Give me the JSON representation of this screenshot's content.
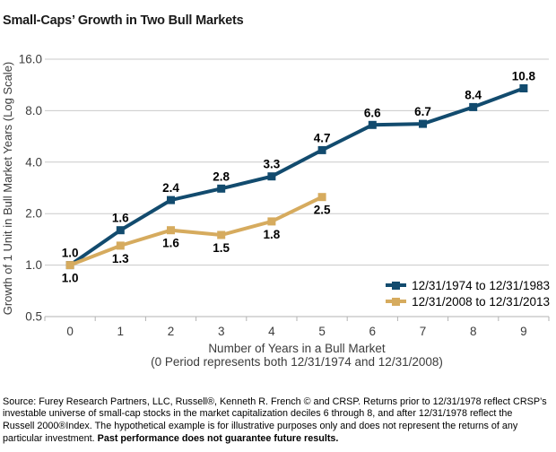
{
  "title": "Small-Caps’ Growth in Two Bull Markets",
  "chart_data": {
    "type": "line",
    "title": "Small-Caps’ Growth in Two Bull Markets",
    "x": [
      "0",
      "1",
      "2",
      "3",
      "4",
      "5",
      "6",
      "7",
      "8",
      "9"
    ],
    "xlabel": "Number of Years in a Bull Market",
    "xlabel_note": "(0 Period represents both 12/31/1974 and 12/31/2008)",
    "ylabel": "Growth of 1 Unit in Bull Market Years (Log Scale)",
    "yscale": "log",
    "ylim": [
      0.5,
      16
    ],
    "yticks": [
      16,
      8,
      4,
      2,
      1,
      0.5
    ],
    "ytick_labels": [
      "16.0",
      "8.0",
      "4.0",
      "2.0",
      "1.0",
      "0.5"
    ],
    "grid": "horizontal-only",
    "grid_color": "#c9c9c9",
    "axis_color": "#b3b3b3",
    "legend_position": "bottom-right-inside",
    "series": [
      {
        "name": "12/31/1974 to 12/31/1983",
        "color": "#124b6e",
        "label_position": "above",
        "values": [
          1.0,
          1.6,
          2.4,
          2.8,
          3.3,
          4.7,
          6.6,
          6.7,
          8.4,
          10.8
        ],
        "labels": [
          "1.0",
          "1.6",
          "2.4",
          "2.8",
          "3.3",
          "4.7",
          "6.6",
          "6.7",
          "8.4",
          "10.8"
        ]
      },
      {
        "name": "12/31/2008 to 12/31/2013",
        "color": "#d6ab5e",
        "label_position": "below",
        "values": [
          1.0,
          1.3,
          1.6,
          1.5,
          1.8,
          2.5
        ],
        "labels": [
          "1.0",
          "1.3",
          "1.6",
          "1.5",
          "1.8",
          "2.5"
        ]
      }
    ]
  },
  "footer": {
    "line1": "Source: Furey Research Partners, LLC, Russell®, Kenneth R. French © and CRSP. Returns prior to 12/31/1978 reflect CRSP’s",
    "line2": "investable universe of small-cap stocks in the market capitalization deciles 6 through 8, and after 12/31/1978 reflect the",
    "line3": "Russell 2000®Index. The hypothetical example is for illustrative purposes only and does not represent the returns of any",
    "line4_regular": "particular investment. ",
    "line4_bold": "Past performance does not guarantee future results."
  }
}
